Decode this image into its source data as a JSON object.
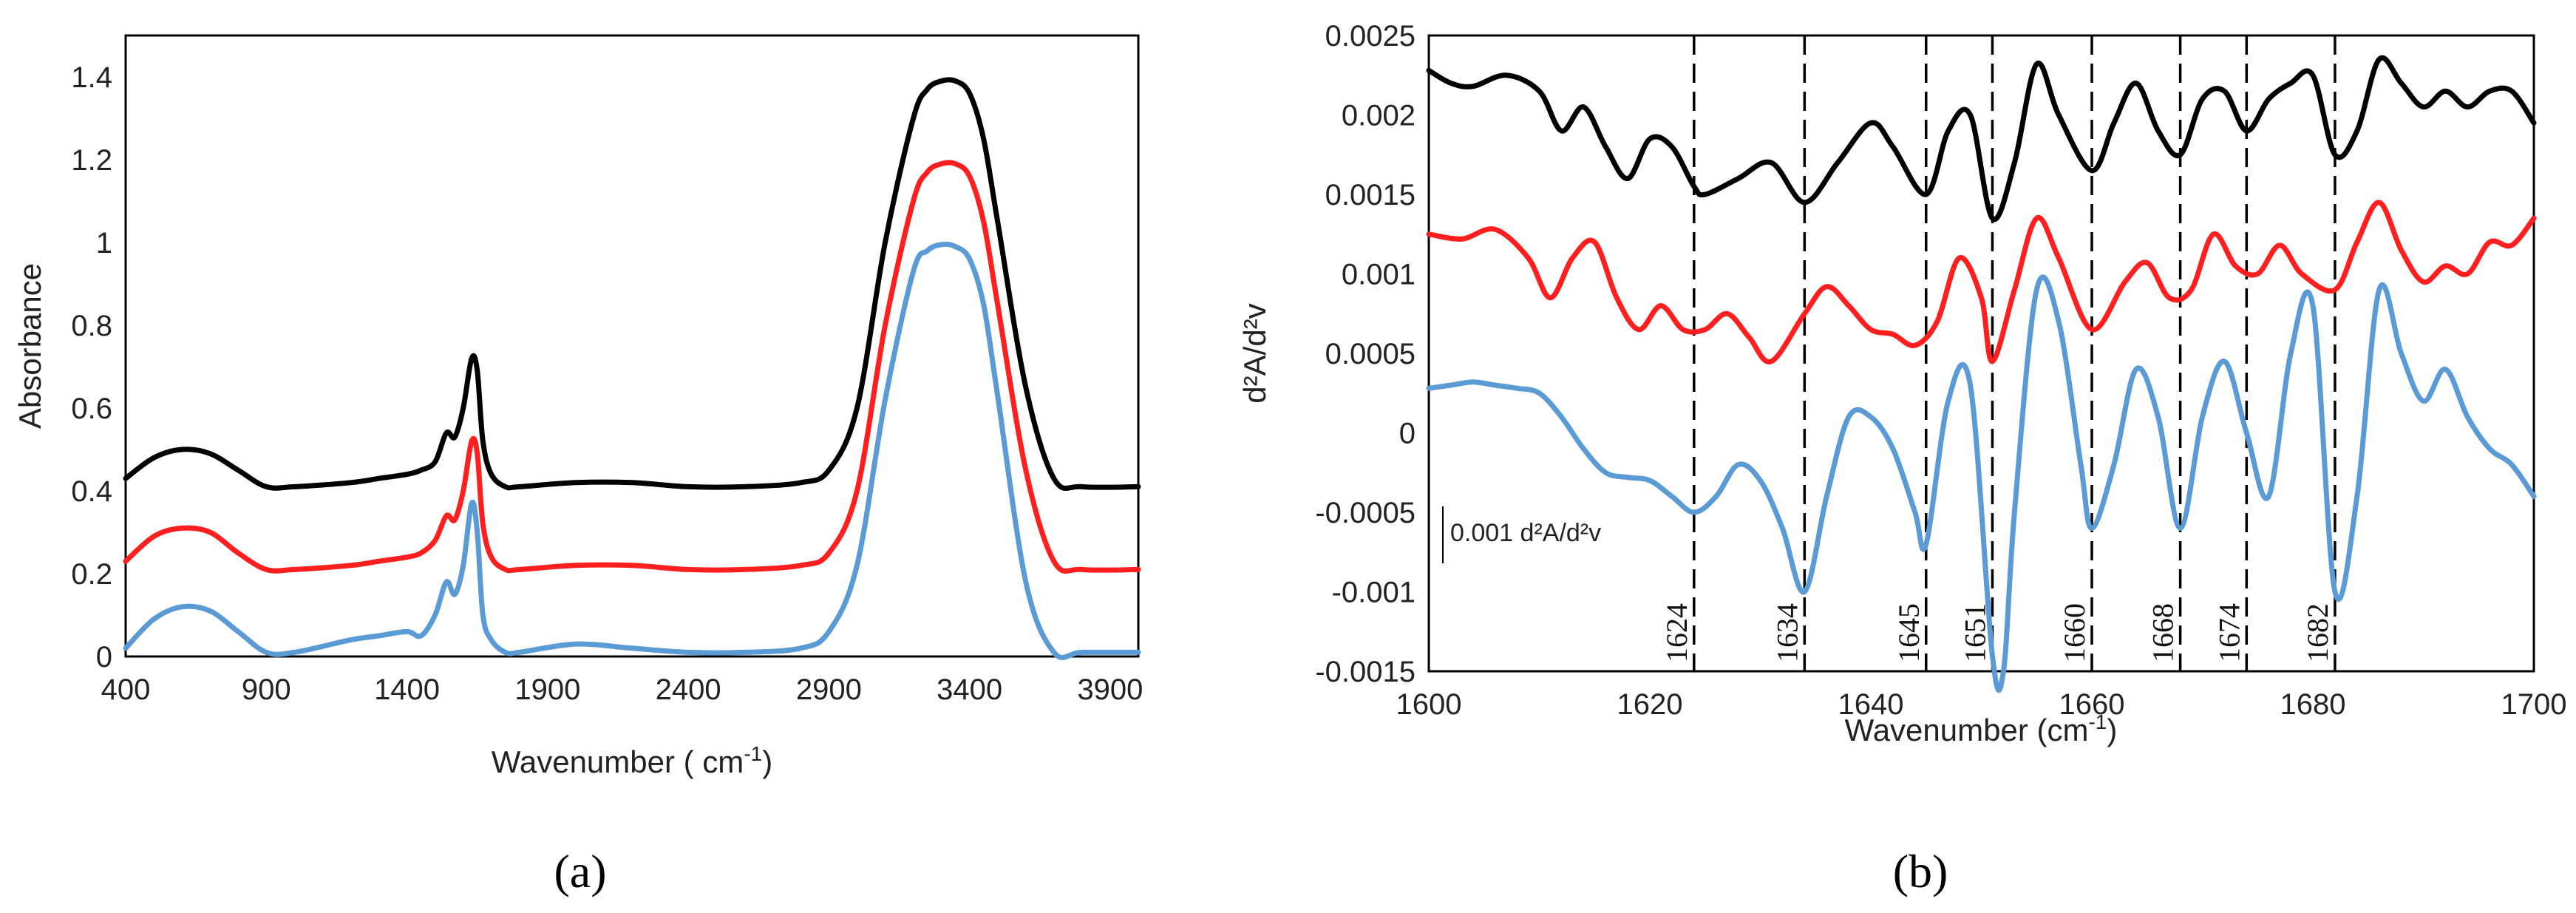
{
  "figure": {
    "caption_a": "(a)",
    "caption_b": "(b)"
  },
  "colors": {
    "black": "#000000",
    "red": "#ff1f1f",
    "blue": "#5b9bd5"
  },
  "chart_data": [
    {
      "type": "line",
      "title": "",
      "xlabel": "Wavenumber",
      "xlabel_unit": "( cm",
      "xlabel_sup": "-1",
      "xlabel_close": ")",
      "ylabel": "Absorbance",
      "xlim": [
        400,
        4000
      ],
      "ylim": [
        0,
        1.5
      ],
      "xticks": [
        400,
        900,
        1400,
        1900,
        2400,
        2900,
        3400,
        3900
      ],
      "xtick_labels": [
        "400",
        "900",
        "1400",
        "1900",
        "2400",
        "2900",
        "3400",
        "3900"
      ],
      "yticks": [
        0,
        0.2,
        0.4,
        0.6,
        0.8,
        1,
        1.2,
        1.4
      ],
      "ytick_labels": [
        "0",
        "0.2",
        "0.4",
        "0.6",
        "0.8",
        "1",
        "1.2",
        "1.4"
      ],
      "series": [
        {
          "name": "black",
          "color": "#000000",
          "x": [
            400,
            500,
            600,
            700,
            800,
            900,
            1000,
            1200,
            1300,
            1400,
            1450,
            1500,
            1540,
            1570,
            1600,
            1630,
            1650,
            1670,
            1700,
            1750,
            1800,
            2000,
            2200,
            2400,
            2600,
            2800,
            2900,
            3000,
            3100,
            3200,
            3250,
            3300,
            3350,
            3400,
            3450,
            3500,
            3600,
            3700,
            3800,
            4000
          ],
          "y": [
            0.43,
            0.48,
            0.5,
            0.49,
            0.45,
            0.41,
            0.41,
            0.42,
            0.43,
            0.44,
            0.45,
            0.47,
            0.54,
            0.53,
            0.6,
            0.72,
            0.69,
            0.52,
            0.44,
            0.41,
            0.41,
            0.42,
            0.42,
            0.41,
            0.41,
            0.42,
            0.45,
            0.6,
            1.0,
            1.3,
            1.37,
            1.39,
            1.39,
            1.36,
            1.25,
            1.05,
            0.65,
            0.43,
            0.41,
            0.41
          ]
        },
        {
          "name": "red",
          "color": "#ff1f1f",
          "x": [
            400,
            500,
            600,
            700,
            800,
            900,
            1000,
            1200,
            1300,
            1400,
            1450,
            1500,
            1540,
            1570,
            1600,
            1630,
            1650,
            1670,
            1700,
            1750,
            1800,
            2000,
            2200,
            2400,
            2600,
            2800,
            2900,
            3000,
            3100,
            3200,
            3250,
            3300,
            3350,
            3400,
            3450,
            3500,
            3600,
            3700,
            3800,
            4000
          ],
          "y": [
            0.23,
            0.29,
            0.31,
            0.3,
            0.25,
            0.21,
            0.21,
            0.22,
            0.23,
            0.24,
            0.25,
            0.28,
            0.34,
            0.33,
            0.4,
            0.52,
            0.49,
            0.32,
            0.24,
            0.21,
            0.21,
            0.22,
            0.22,
            0.21,
            0.21,
            0.22,
            0.25,
            0.4,
            0.8,
            1.1,
            1.17,
            1.19,
            1.19,
            1.16,
            1.05,
            0.85,
            0.45,
            0.23,
            0.21,
            0.21
          ]
        },
        {
          "name": "blue",
          "color": "#5b9bd5",
          "x": [
            400,
            500,
            600,
            700,
            800,
            900,
            1000,
            1200,
            1300,
            1400,
            1450,
            1500,
            1540,
            1570,
            1600,
            1630,
            1650,
            1670,
            1700,
            1750,
            1800,
            2000,
            2200,
            2400,
            2600,
            2800,
            2900,
            3000,
            3100,
            3200,
            3250,
            3300,
            3350,
            3400,
            3450,
            3500,
            3600,
            3700,
            3800,
            4000
          ],
          "y": [
            0.02,
            0.09,
            0.12,
            0.11,
            0.06,
            0.01,
            0.01,
            0.04,
            0.05,
            0.06,
            0.05,
            0.1,
            0.18,
            0.15,
            0.22,
            0.37,
            0.3,
            0.1,
            0.04,
            0.01,
            0.01,
            0.03,
            0.02,
            0.01,
            0.01,
            0.02,
            0.06,
            0.22,
            0.62,
            0.93,
            0.98,
            0.995,
            0.99,
            0.96,
            0.85,
            0.63,
            0.18,
            0.01,
            0.01,
            0.01
          ]
        }
      ]
    },
    {
      "type": "line",
      "title": "",
      "xlabel": "Wavenumber (cm",
      "xlabel_sup": "-1",
      "xlabel_close": ")",
      "ylabel": "d²A/d²v",
      "xlim": [
        1600,
        1700
      ],
      "ylim": [
        -0.0015,
        0.0025
      ],
      "xticks": [
        1600,
        1620,
        1640,
        1660,
        1680,
        1700
      ],
      "xtick_labels": [
        "1600",
        "1620",
        "1640",
        "1660",
        "1680",
        "1700"
      ],
      "yticks": [
        -0.0015,
        -0.001,
        -0.0005,
        0,
        0.0005,
        0.001,
        0.0015,
        0.002,
        0.0025
      ],
      "ytick_labels": [
        "-0.0015",
        "-0.001",
        "-0.0005",
        "0",
        "0.0005",
        "0.001",
        "0.0015",
        "0.002",
        "0.0025"
      ],
      "peak_lines": [
        1624,
        1634,
        1645,
        1651,
        1660,
        1668,
        1674,
        1682
      ],
      "peak_labels": [
        "1624",
        "1634",
        "1645",
        "1651",
        "1660",
        "1668",
        "1674",
        "1682"
      ],
      "scale_bar_label": "0.001 d²A/d²v",
      "series": [
        {
          "name": "black",
          "color": "#000000",
          "x": [
            1600,
            1602,
            1604,
            1607,
            1610,
            1612,
            1614,
            1616,
            1618,
            1620,
            1622,
            1624,
            1625,
            1628,
            1631,
            1634,
            1637,
            1640,
            1642,
            1645,
            1647,
            1649,
            1651,
            1653,
            1655,
            1657,
            1660,
            1662,
            1664,
            1666,
            1668,
            1670,
            1672,
            1674,
            1676,
            1678,
            1680,
            1682,
            1684,
            1686,
            1688,
            1690,
            1692,
            1694,
            1696,
            1698,
            1700
          ],
          "y": [
            0.00228,
            0.0022,
            0.00218,
            0.00225,
            0.00215,
            0.0019,
            0.00205,
            0.0018,
            0.0016,
            0.00185,
            0.0018,
            0.00155,
            0.0015,
            0.0016,
            0.0017,
            0.00145,
            0.0017,
            0.00195,
            0.0018,
            0.0015,
            0.0019,
            0.002,
            0.00135,
            0.0017,
            0.00232,
            0.002,
            0.00165,
            0.00195,
            0.0022,
            0.0019,
            0.00175,
            0.0021,
            0.00215,
            0.0019,
            0.0021,
            0.0022,
            0.00225,
            0.00175,
            0.0019,
            0.00235,
            0.0022,
            0.00205,
            0.00215,
            0.00205,
            0.00215,
            0.00215,
            0.00195
          ]
        },
        {
          "name": "red",
          "color": "#ff1f1f",
          "x": [
            1600,
            1603,
            1606,
            1609,
            1611,
            1613,
            1615,
            1617,
            1619,
            1621,
            1623,
            1625,
            1627,
            1629,
            1631,
            1634,
            1636,
            1638,
            1640,
            1642,
            1644,
            1646,
            1648,
            1650,
            1651,
            1653,
            1655,
            1657,
            1660,
            1663,
            1665,
            1667,
            1669,
            1671,
            1673,
            1675,
            1677,
            1679,
            1682,
            1684,
            1686,
            1688,
            1690,
            1692,
            1694,
            1696,
            1698,
            1700
          ],
          "y": [
            0.00125,
            0.00122,
            0.00128,
            0.0011,
            0.00085,
            0.0011,
            0.0012,
            0.00085,
            0.00065,
            0.0008,
            0.00065,
            0.00065,
            0.00075,
            0.0006,
            0.00045,
            0.00075,
            0.00092,
            0.0008,
            0.00065,
            0.00062,
            0.00055,
            0.0007,
            0.0011,
            0.00085,
            0.00045,
            0.0009,
            0.00135,
            0.0011,
            0.00065,
            0.00095,
            0.00107,
            0.00085,
            0.0009,
            0.00125,
            0.00105,
            0.001,
            0.00118,
            0.001,
            0.0009,
            0.0012,
            0.00145,
            0.00115,
            0.00095,
            0.00105,
            0.001,
            0.0012,
            0.00118,
            0.00135
          ]
        },
        {
          "name": "blue",
          "color": "#5b9bd5",
          "x": [
            1600,
            1602,
            1604,
            1606,
            1608,
            1610,
            1612,
            1614,
            1616,
            1618,
            1620,
            1622,
            1624,
            1626,
            1628,
            1630,
            1632,
            1634,
            1636,
            1638,
            1640,
            1642,
            1644,
            1645,
            1647,
            1649,
            1651,
            1652,
            1653,
            1655,
            1657,
            1659,
            1660,
            1662,
            1664,
            1666,
            1668,
            1670,
            1672,
            1674,
            1676,
            1678,
            1680,
            1682,
            1684,
            1686,
            1688,
            1690,
            1692,
            1694,
            1696,
            1698,
            1700
          ],
          "y": [
            0.00028,
            0.0003,
            0.00032,
            0.0003,
            0.00028,
            0.00025,
            0.0001,
            -0.0001,
            -0.00025,
            -0.00028,
            -0.0003,
            -0.0004,
            -0.0005,
            -0.0004,
            -0.0002,
            -0.0003,
            -0.0006,
            -0.001,
            -0.0004,
            0.0001,
            0.0001,
            -0.0001,
            -0.0005,
            -0.0007,
            0.0002,
            0.0003,
            -0.0014,
            -0.0015,
            -0.0005,
            0.0009,
            0.0007,
            -0.0002,
            -0.0006,
            -0.0002,
            0.0004,
            0.0001,
            -0.0006,
            0.0001,
            0.00045,
            0.0,
            -0.0004,
            0.0005,
            0.0008,
            -0.001,
            -0.0004,
            0.0009,
            0.0005,
            0.0002,
            0.0004,
            0.0001,
            -0.0001,
            -0.0002,
            -0.0004
          ]
        }
      ]
    }
  ]
}
